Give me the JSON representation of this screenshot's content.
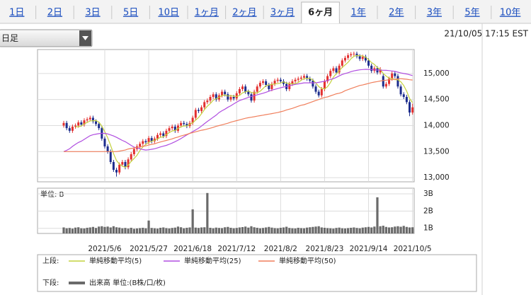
{
  "tabs": [
    "1日",
    "2日",
    "3日",
    "5日",
    "10日",
    "1ヶ月",
    "2ヶ月",
    "3ヶ月",
    "6ヶ月",
    "1年",
    "2年",
    "3年",
    "5年",
    "10年"
  ],
  "selected_tab": 8,
  "period_select": "日足",
  "timestamp": "21/10/05 17:15 EST",
  "chart_data": [
    {
      "type": "candlestick",
      "legend_label": "上段:",
      "up_color": "#e3302f",
      "down_color": "#1c2c8c",
      "grid": true,
      "ylim": [
        12920,
        15460
      ],
      "yticks": [
        {
          "value": 15000,
          "label": "15,000"
        },
        {
          "value": 14500,
          "label": "14,500"
        },
        {
          "value": 14000,
          "label": "14,000"
        },
        {
          "value": 13500,
          "label": "13,500"
        },
        {
          "value": 13000,
          "label": "13,000"
        }
      ],
      "open": [
        14000,
        14050,
        13950,
        13900,
        13980,
        14000,
        14060,
        14020,
        14100,
        14120,
        14150,
        14080,
        14030,
        13950,
        13750,
        13600,
        13500,
        13300,
        13150,
        13100,
        13250,
        13300,
        13200,
        13350,
        13450,
        13550,
        13600,
        13650,
        13700,
        13680,
        13760,
        13700,
        13750,
        13820,
        13850,
        13800,
        13900,
        13950,
        13980,
        13900,
        14000,
        14050,
        14030,
        13990,
        14050,
        14150,
        14300,
        14280,
        14350,
        14450,
        14480,
        14550,
        14600,
        14500,
        14580,
        14650,
        14600,
        14500,
        14550,
        14520,
        14620,
        14700,
        14750,
        14650,
        14600,
        14480,
        14650,
        14750,
        14820,
        14850,
        14780,
        14700,
        14800,
        14860,
        14880,
        14850,
        14800,
        14700,
        14800,
        14850,
        14880,
        14900,
        14920,
        14950,
        14900,
        14860,
        14750,
        14650,
        14580,
        14700,
        14850,
        14950,
        15050,
        15100,
        15020,
        15150,
        15250,
        15300,
        15350,
        15370,
        15380,
        15330,
        15280,
        15320,
        15250,
        15150,
        15050,
        15100,
        15020,
        14950,
        14750,
        14800,
        14900,
        15000,
        14950,
        14750,
        14600,
        14550,
        14450,
        14250
      ],
      "high": [
        14090,
        14090,
        13990,
        14020,
        14040,
        14100,
        14100,
        14140,
        14160,
        14190,
        14190,
        14120,
        14070,
        13990,
        13790,
        13640,
        13540,
        13340,
        13190,
        13290,
        13340,
        13340,
        13390,
        13490,
        13590,
        13640,
        13690,
        13740,
        13740,
        13800,
        13800,
        13790,
        13860,
        13890,
        13890,
        13940,
        13990,
        14020,
        14020,
        14040,
        14090,
        14090,
        14070,
        14090,
        14190,
        14340,
        14340,
        14390,
        14490,
        14520,
        14590,
        14640,
        14640,
        14620,
        14690,
        14690,
        14640,
        14590,
        14590,
        14660,
        14740,
        14790,
        14790,
        14690,
        14640,
        14690,
        14790,
        14860,
        14890,
        14890,
        14820,
        14840,
        14900,
        14920,
        14920,
        14890,
        14840,
        14840,
        14890,
        14920,
        14940,
        14960,
        14990,
        14990,
        14940,
        14900,
        14790,
        14690,
        14740,
        14890,
        14990,
        15090,
        15140,
        15140,
        15190,
        15290,
        15340,
        15390,
        15410,
        15420,
        15420,
        15370,
        15360,
        15360,
        15290,
        15190,
        15140,
        15140,
        15120,
        14990,
        14840,
        14940,
        15040,
        15040,
        14990,
        14790,
        14640,
        14590,
        14490,
        14420
      ],
      "low": [
        13960,
        13910,
        13860,
        13860,
        13940,
        13960,
        13980,
        13980,
        14060,
        14080,
        14040,
        13990,
        13910,
        13710,
        13560,
        13460,
        13260,
        13110,
        13020,
        13060,
        13210,
        13160,
        13160,
        13310,
        13410,
        13510,
        13560,
        13610,
        13640,
        13640,
        13660,
        13660,
        13710,
        13780,
        13760,
        13760,
        13860,
        13910,
        13860,
        13860,
        13960,
        13990,
        13950,
        13950,
        14010,
        14110,
        14240,
        14240,
        14310,
        14410,
        14440,
        14510,
        14460,
        14460,
        14540,
        14560,
        14460,
        14460,
        14480,
        14480,
        14580,
        14660,
        14610,
        14560,
        14440,
        14440,
        14610,
        14710,
        14780,
        14740,
        14660,
        14660,
        14760,
        14820,
        14810,
        14760,
        14660,
        14660,
        14760,
        14810,
        14840,
        14860,
        14880,
        14860,
        14820,
        14710,
        14610,
        14540,
        14540,
        14660,
        14810,
        14910,
        15010,
        14980,
        14980,
        15110,
        15210,
        15260,
        15310,
        15330,
        15290,
        15240,
        15240,
        15210,
        15110,
        15010,
        15010,
        14980,
        14980,
        14710,
        14710,
        14760,
        14860,
        14910,
        14710,
        14560,
        14510,
        14410,
        14180,
        14210
      ],
      "close": [
        14050,
        13950,
        13900,
        13980,
        14000,
        14060,
        14020,
        14100,
        14120,
        14150,
        14080,
        14030,
        13950,
        13750,
        13600,
        13500,
        13300,
        13150,
        13100,
        13250,
        13300,
        13200,
        13350,
        13450,
        13550,
        13600,
        13650,
        13700,
        13680,
        13760,
        13700,
        13750,
        13820,
        13850,
        13800,
        13900,
        13950,
        13980,
        13900,
        14000,
        14050,
        14030,
        13990,
        14050,
        14150,
        14300,
        14280,
        14350,
        14450,
        14480,
        14550,
        14600,
        14500,
        14580,
        14650,
        14600,
        14500,
        14550,
        14520,
        14620,
        14700,
        14750,
        14650,
        14600,
        14480,
        14650,
        14750,
        14820,
        14850,
        14780,
        14700,
        14800,
        14860,
        14880,
        14850,
        14800,
        14700,
        14800,
        14850,
        14880,
        14900,
        14920,
        14950,
        14900,
        14860,
        14750,
        14650,
        14580,
        14700,
        14850,
        14950,
        15050,
        15100,
        15020,
        15150,
        15250,
        15300,
        15350,
        15370,
        15380,
        15330,
        15280,
        15320,
        15250,
        15150,
        15050,
        15100,
        15020,
        15080,
        14750,
        14800,
        14900,
        15000,
        14950,
        14750,
        14600,
        14550,
        14450,
        14250,
        14350
      ],
      "series": [
        {
          "name": "単純移動平均(5)",
          "color": "#c4d23e",
          "values": [
            null,
            null,
            null,
            null,
            13976,
            13978,
            13992,
            14032,
            14060,
            14090,
            14094,
            14096,
            14066,
            13992,
            13882,
            13766,
            13620,
            13460,
            13330,
            13260,
            13220,
            13200,
            13240,
            13310,
            13370,
            13430,
            13520,
            13590,
            13636,
            13678,
            13698,
            13718,
            13742,
            13776,
            13784,
            13824,
            13864,
            13896,
            13906,
            13946,
            13976,
            13992,
            13994,
            14024,
            14054,
            14104,
            14154,
            14226,
            14306,
            14372,
            14422,
            14486,
            14516,
            14542,
            14576,
            14586,
            14566,
            14576,
            14564,
            14558,
            14578,
            14628,
            14648,
            14664,
            14636,
            14626,
            14626,
            14660,
            14710,
            14770,
            14780,
            14790,
            14798,
            14804,
            14818,
            14838,
            14818,
            14806,
            14800,
            14806,
            14826,
            14870,
            14900,
            14910,
            14906,
            14876,
            14822,
            14748,
            14708,
            14706,
            14746,
            14826,
            14930,
            14994,
            15054,
            15114,
            15164,
            15214,
            15284,
            15330,
            15346,
            15342,
            15336,
            15312,
            15266,
            15210,
            15174,
            15114,
            15080,
            15000,
            14950,
            14910,
            14906,
            14880,
            14880,
            14840,
            14770,
            14660,
            14520,
            14440
          ]
        },
        {
          "name": "単純移動平均(25)",
          "color": "#b04ee0",
          "values": [
            13500,
            13525,
            13555,
            13600,
            13640,
            13675,
            13700,
            13735,
            13770,
            13805,
            13825,
            13835,
            13845,
            13850,
            13850,
            13840,
            13820,
            13800,
            13775,
            13745,
            13715,
            13690,
            13655,
            13620,
            13585,
            13570,
            13555,
            13540,
            13530,
            13535,
            13545,
            13555,
            13570,
            13590,
            13605,
            13620,
            13640,
            13665,
            13690,
            13720,
            13750,
            13785,
            13820,
            13850,
            13885,
            13915,
            13950,
            13990,
            14035,
            14080,
            14120,
            14160,
            14200,
            14250,
            14285,
            14315,
            14350,
            14380,
            14415,
            14450,
            14480,
            14500,
            14520,
            14540,
            14560,
            14575,
            14590,
            14605,
            14620,
            14640,
            14660,
            14680,
            14695,
            14710,
            14725,
            14740,
            14750,
            14765,
            14780,
            14790,
            14800,
            14810,
            14820,
            14820,
            14820,
            14820,
            14820,
            14830,
            14840,
            14850,
            14865,
            14885,
            14900,
            14925,
            14955,
            14980,
            15000,
            15015,
            15035,
            15050,
            15060,
            15070,
            15075,
            15080,
            15078,
            15075,
            15070,
            15068,
            15065,
            15062,
            15060,
            15055,
            15048,
            15040,
            15025,
            15010,
            15000,
            14990,
            14975,
            14960
          ]
        },
        {
          "name": "単純移動平均(50)",
          "color": "#f07f5c",
          "values": [
            13500,
            13500,
            13500,
            13500,
            13500,
            13500,
            13500,
            13500,
            13500,
            13500,
            13500,
            13500,
            13500,
            13500,
            13500,
            13500,
            13500,
            13500,
            13500,
            13510,
            13520,
            13530,
            13550,
            13560,
            13570,
            13580,
            13590,
            13600,
            13610,
            13625,
            13640,
            13650,
            13670,
            13685,
            13700,
            13715,
            13730,
            13745,
            13765,
            13780,
            13800,
            13815,
            13830,
            13850,
            13865,
            13880,
            13895,
            13910,
            13920,
            13935,
            13950,
            13965,
            13985,
            14000,
            14015,
            14030,
            14045,
            14065,
            14080,
            14095,
            14110,
            14125,
            14140,
            14150,
            14160,
            14170,
            14180,
            14190,
            14200,
            14210,
            14220,
            14230,
            14240,
            14250,
            14265,
            14280,
            14300,
            14315,
            14330,
            14350,
            14370,
            14390,
            14400,
            14420,
            14440,
            14460,
            14480,
            14500,
            14520,
            14540,
            14550,
            14570,
            14590,
            14610,
            14620,
            14640,
            14670,
            14690,
            14710,
            14730,
            14750,
            14770,
            14780,
            14795,
            14810,
            14825,
            14835,
            14845,
            14855,
            14865,
            14870,
            14880,
            14885,
            14890,
            14895,
            14900,
            14895,
            14890,
            14880,
            14875
          ]
        }
      ]
    },
    {
      "type": "bar",
      "legend_label": "下段:",
      "unit_label": "単位: B",
      "grid": true,
      "categories": [
        null,
        null,
        null,
        null,
        null,
        null,
        null,
        null,
        null,
        null,
        null,
        null,
        null,
        null,
        "2021/5/6",
        null,
        null,
        null,
        null,
        null,
        null,
        null,
        null,
        null,
        null,
        null,
        null,
        null,
        null,
        "2021/5/27",
        null,
        null,
        null,
        null,
        null,
        null,
        null,
        null,
        null,
        null,
        null,
        null,
        null,
        null,
        "2021/6/18",
        null,
        null,
        null,
        null,
        null,
        null,
        null,
        null,
        null,
        null,
        null,
        null,
        null,
        null,
        "2021/7/12",
        null,
        null,
        null,
        null,
        null,
        null,
        null,
        null,
        null,
        null,
        null,
        null,
        null,
        null,
        "2021/8/2",
        null,
        null,
        null,
        null,
        null,
        null,
        null,
        null,
        null,
        null,
        null,
        null,
        null,
        null,
        "2021/8/23",
        null,
        null,
        null,
        null,
        null,
        null,
        null,
        null,
        null,
        null,
        null,
        null,
        null,
        null,
        "2021/9/14",
        null,
        null,
        null,
        null,
        null,
        null,
        null,
        null,
        null,
        null,
        null,
        null,
        null,
        null,
        "2021/10/5"
      ],
      "ylim": [
        0.7,
        3.33
      ],
      "yticks": [
        {
          "value": 3,
          "label": "3B"
        },
        {
          "value": 2,
          "label": "2B"
        },
        {
          "value": 1,
          "label": "1B"
        }
      ],
      "series": [
        {
          "name": "出来高 単位:(B株/口/枚)",
          "color": "#6a6a6a",
          "values": [
            1.05,
            1.0,
            1.02,
            0.98,
            1.04,
            1.06,
            1.0,
            0.99,
            1.03,
            1.05,
            1.08,
            1.02,
            1.1,
            1.12,
            1.08,
            1.1,
            1.05,
            1.12,
            1.06,
            1.04,
            1.0,
            1.02,
            0.98,
            1.03,
            0.97,
            0.99,
            1.01,
            1.03,
            1.0,
            1.45,
            1.02,
            1.0,
            0.98,
            1.03,
            1.05,
            1.01,
            0.99,
            1.02,
            1.04,
            1.1,
            1.06,
            1.0,
            1.03,
            1.05,
            2.1,
            1.04,
            1.02,
            1.05,
            1.06,
            3.05,
            1.03,
            1.0,
            1.04,
            1.02,
            1.01,
            1.06,
            1.08,
            1.03,
            1.0,
            1.02,
            1.05,
            1.07,
            1.1,
            1.04,
            1.12,
            1.06,
            1.03,
            1.0,
            1.02,
            1.05,
            1.08,
            1.04,
            1.01,
            1.0,
            1.03,
            1.05,
            1.09,
            1.02,
            1.0,
            0.99,
            1.03,
            1.01,
            1.0,
            1.04,
            1.06,
            1.08,
            1.1,
            1.12,
            1.05,
            1.03,
            1.01,
            1.0,
            0.98,
            1.02,
            1.04,
            1.0,
            0.99,
            1.01,
            1.03,
            1.05,
            1.02,
            1.0,
            1.04,
            1.06,
            1.08,
            1.05,
            1.1,
            2.8,
            1.12,
            1.15,
            1.08,
            1.05,
            1.06,
            1.1,
            1.12,
            1.09,
            1.14,
            1.08,
            1.05,
            1.06
          ]
        }
      ]
    }
  ]
}
